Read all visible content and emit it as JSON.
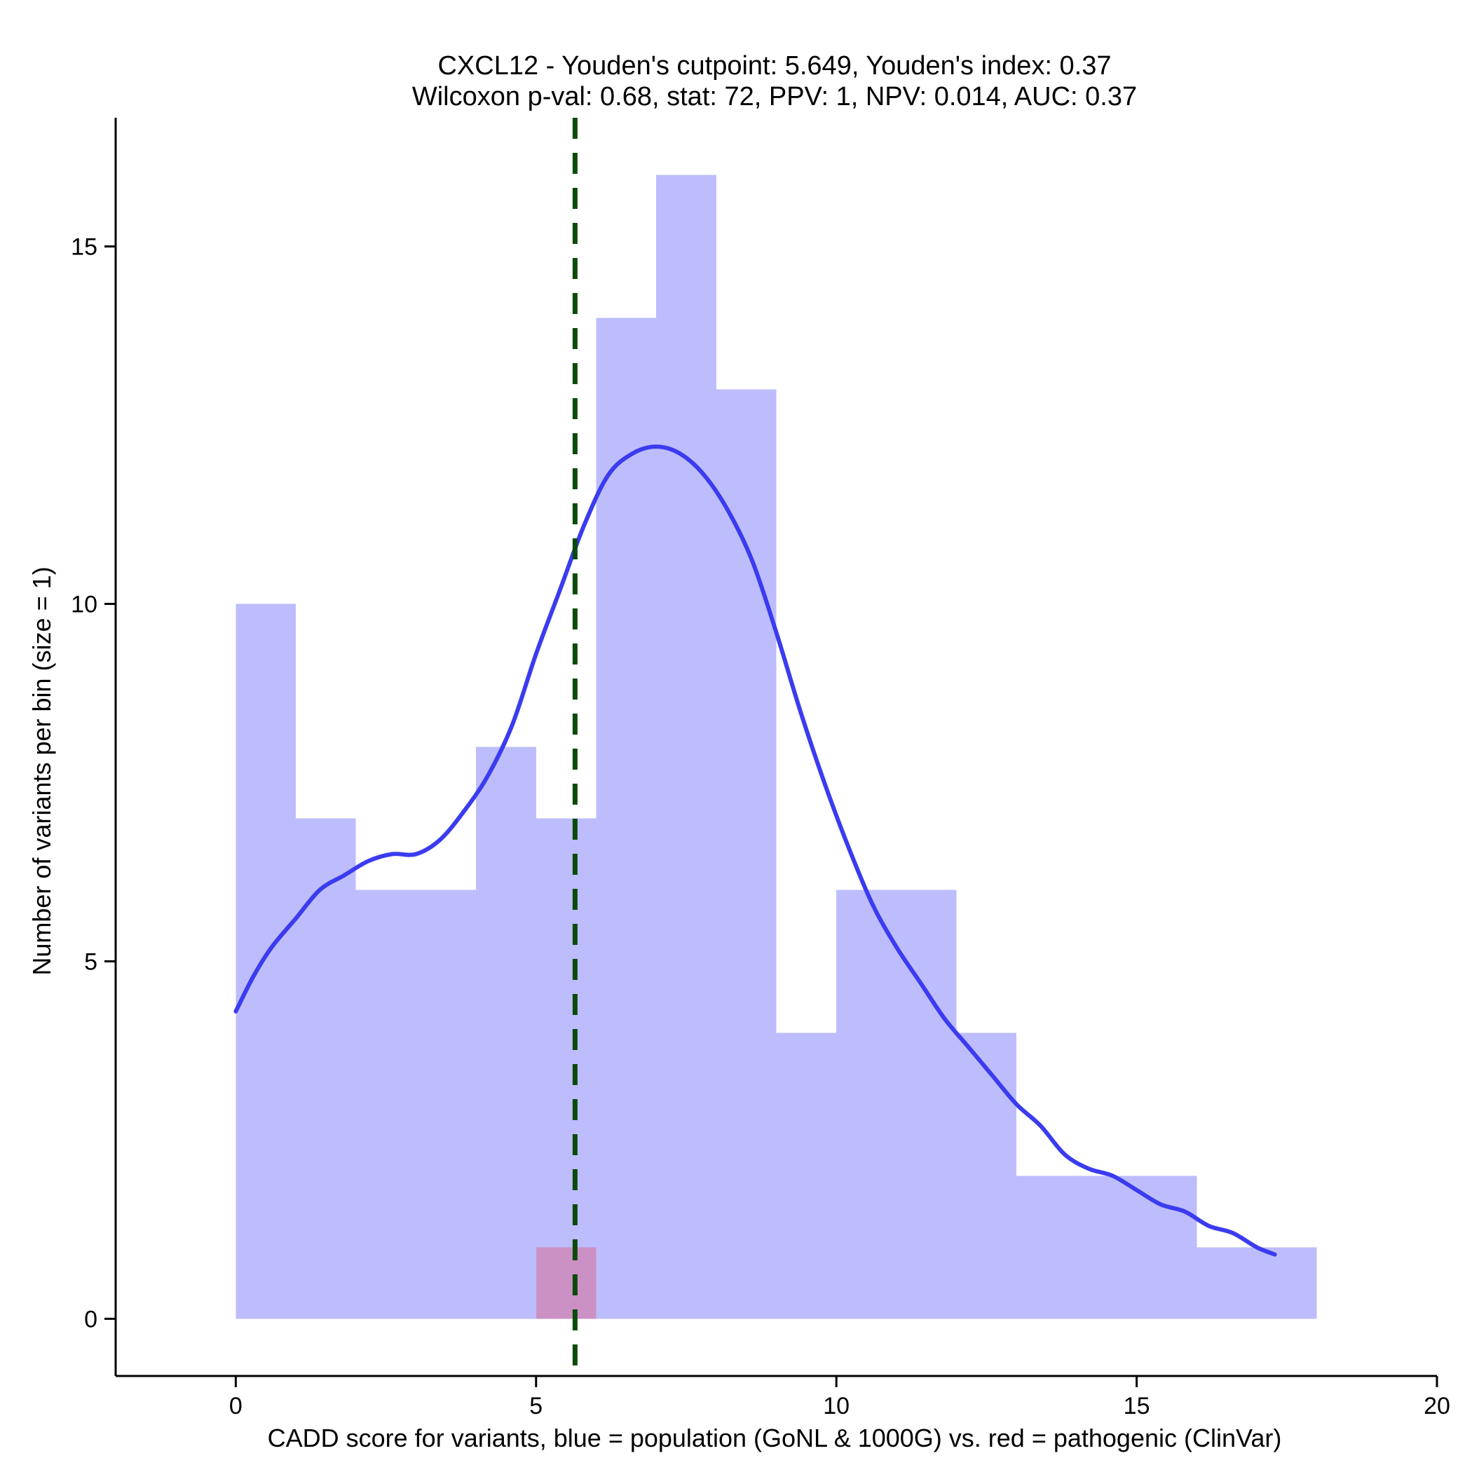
{
  "chart_data": {
    "type": "bar",
    "title": "CXCL12 - Youden's cutpoint: 5.649, Youden's index: 0.37",
    "subtitle": "Wilcoxon p-val: 0.68, stat: 72, PPV: 1, NPV: 0.014, AUC: 0.37",
    "xlabel": "CADD score for variants, blue = population (GoNL & 1000G) vs. red = pathogenic (ClinVar)",
    "ylabel": "Number of variants per bin (size = 1)",
    "xlim": [
      -2,
      20
    ],
    "ylim": [
      -0.8,
      16.8
    ],
    "x_ticks": [
      0,
      5,
      10,
      15,
      20
    ],
    "y_ticks": [
      0,
      5,
      10,
      15
    ],
    "grid": false,
    "bin_edges": [
      0,
      1,
      2,
      3,
      4,
      5,
      6,
      7,
      8,
      9,
      10,
      11,
      12,
      13,
      14,
      15,
      16,
      17,
      18
    ],
    "series": [
      {
        "name": "population (GoNL & 1000G)",
        "color": "#bdbdfd",
        "values": [
          10,
          7,
          6,
          6,
          8,
          7,
          14,
          16,
          13,
          4,
          6,
          6,
          4,
          2,
          2,
          2,
          1,
          1
        ]
      },
      {
        "name": "pathogenic (ClinVar)",
        "color": "#cc91c4",
        "values": [
          0,
          0,
          0,
          0,
          0,
          1,
          0,
          0,
          0,
          0,
          0,
          0,
          0,
          0,
          0,
          0,
          0,
          0
        ]
      }
    ],
    "density_curve": {
      "color": "#3b3bf0",
      "points": [
        [
          0.0,
          4.3
        ],
        [
          0.3,
          4.8
        ],
        [
          0.6,
          5.2
        ],
        [
          1.0,
          5.6
        ],
        [
          1.4,
          6.0
        ],
        [
          1.8,
          6.2
        ],
        [
          2.2,
          6.4
        ],
        [
          2.6,
          6.5
        ],
        [
          3.0,
          6.5
        ],
        [
          3.4,
          6.7
        ],
        [
          3.8,
          7.1
        ],
        [
          4.2,
          7.6
        ],
        [
          4.6,
          8.3
        ],
        [
          5.0,
          9.3
        ],
        [
          5.4,
          10.2
        ],
        [
          5.8,
          11.1
        ],
        [
          6.2,
          11.8
        ],
        [
          6.6,
          12.1
        ],
        [
          7.0,
          12.2
        ],
        [
          7.4,
          12.1
        ],
        [
          7.8,
          11.8
        ],
        [
          8.2,
          11.3
        ],
        [
          8.6,
          10.6
        ],
        [
          9.0,
          9.6
        ],
        [
          9.4,
          8.5
        ],
        [
          9.8,
          7.5
        ],
        [
          10.2,
          6.6
        ],
        [
          10.6,
          5.8
        ],
        [
          11.0,
          5.2
        ],
        [
          11.4,
          4.7
        ],
        [
          11.8,
          4.2
        ],
        [
          12.2,
          3.8
        ],
        [
          12.6,
          3.4
        ],
        [
          13.0,
          3.0
        ],
        [
          13.4,
          2.7
        ],
        [
          13.8,
          2.3
        ],
        [
          14.2,
          2.1
        ],
        [
          14.6,
          2.0
        ],
        [
          15.0,
          1.8
        ],
        [
          15.4,
          1.6
        ],
        [
          15.8,
          1.5
        ],
        [
          16.2,
          1.3
        ],
        [
          16.6,
          1.2
        ],
        [
          17.0,
          1.0
        ],
        [
          17.3,
          0.9
        ]
      ]
    },
    "cutpoint": {
      "x": 5.649,
      "color": "#0b4a0b"
    }
  }
}
